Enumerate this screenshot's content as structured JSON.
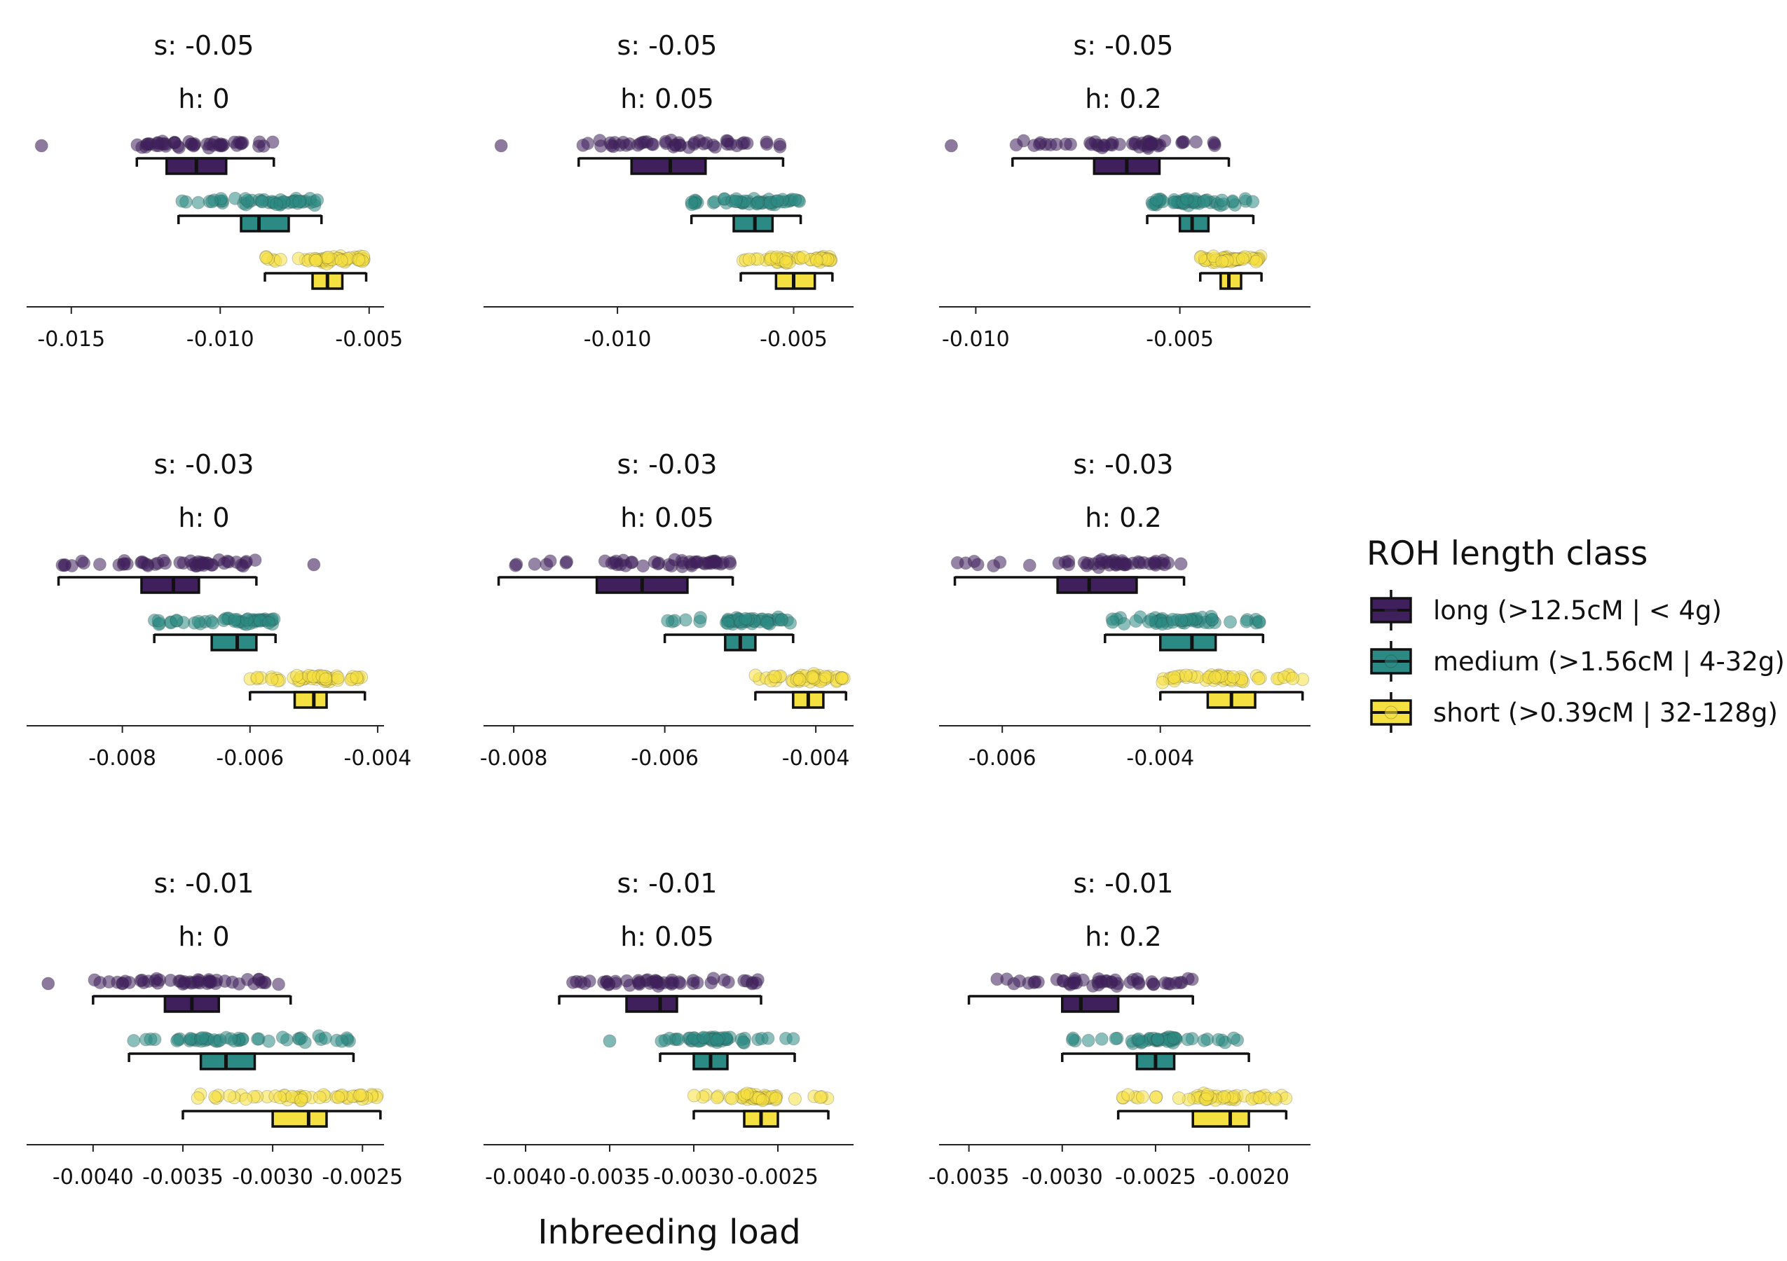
{
  "chart_data": {
    "type": "box",
    "xlabel": "Inbreeding load",
    "ylabel": "",
    "legend": {
      "title": "ROH length class",
      "position": "right",
      "entries": [
        {
          "label": "long (>12.5cM | < 4g)",
          "color": "#3f1f5c"
        },
        {
          "label": "medium (>1.56cM | 4-32g)",
          "color": "#2b8a83"
        },
        {
          "label": "short (>0.39cM | 32-128g)",
          "color": "#f5e042"
        }
      ]
    },
    "panels": [
      {
        "s": "s: -0.05",
        "h": "h: 0",
        "xlim": [
          -0.0165,
          -0.0045
        ],
        "ticks": [
          {
            "v": -0.015,
            "label": "-0.015"
          },
          {
            "v": -0.01,
            "label": "-0.010"
          },
          {
            "v": -0.005,
            "label": "-0.005"
          }
        ],
        "boxes": [
          {
            "class": "long",
            "min": -0.0128,
            "q1": -0.0118,
            "median": -0.0108,
            "q3": -0.0098,
            "max": -0.0082,
            "outliers": [
              -0.016
            ]
          },
          {
            "class": "medium",
            "min": -0.0114,
            "q1": -0.0093,
            "median": -0.0087,
            "q3": -0.0077,
            "max": -0.0066,
            "outliers": []
          },
          {
            "class": "short",
            "min": -0.0085,
            "q1": -0.0069,
            "median": -0.0064,
            "q3": -0.0059,
            "max": -0.0051,
            "outliers": []
          }
        ]
      },
      {
        "s": "s: -0.05",
        "h": "h: 0.05",
        "xlim": [
          -0.0138,
          -0.0033
        ],
        "ticks": [
          {
            "v": -0.01,
            "label": "-0.010"
          },
          {
            "v": -0.005,
            "label": "-0.005"
          }
        ],
        "boxes": [
          {
            "class": "long",
            "min": -0.0111,
            "q1": -0.0096,
            "median": -0.0085,
            "q3": -0.0075,
            "max": -0.0053,
            "outliers": [
              -0.0133
            ]
          },
          {
            "class": "medium",
            "min": -0.0079,
            "q1": -0.0067,
            "median": -0.0061,
            "q3": -0.0056,
            "max": -0.0048,
            "outliers": []
          },
          {
            "class": "short",
            "min": -0.0065,
            "q1": -0.0055,
            "median": -0.005,
            "q3": -0.0044,
            "max": -0.0039,
            "outliers": []
          }
        ]
      },
      {
        "s": "s: -0.05",
        "h": "h: 0.2",
        "xlim": [
          -0.0109,
          -0.0018
        ],
        "ticks": [
          {
            "v": -0.01,
            "label": "-0.010"
          },
          {
            "v": -0.005,
            "label": "-0.005"
          }
        ],
        "boxes": [
          {
            "class": "long",
            "min": -0.0091,
            "q1": -0.0071,
            "median": -0.0063,
            "q3": -0.0055,
            "max": -0.0038,
            "outliers": [
              -0.0106
            ]
          },
          {
            "class": "medium",
            "min": -0.0058,
            "q1": -0.005,
            "median": -0.0047,
            "q3": -0.0043,
            "max": -0.0032,
            "outliers": []
          },
          {
            "class": "short",
            "min": -0.0045,
            "q1": -0.004,
            "median": -0.0038,
            "q3": -0.0035,
            "max": -0.003,
            "outliers": []
          }
        ]
      },
      {
        "s": "s: -0.03",
        "h": "h: 0",
        "xlim": [
          -0.0095,
          -0.0039
        ],
        "ticks": [
          {
            "v": -0.008,
            "label": "-0.008"
          },
          {
            "v": -0.006,
            "label": "-0.006"
          },
          {
            "v": -0.004,
            "label": "-0.004"
          }
        ],
        "boxes": [
          {
            "class": "long",
            "min": -0.009,
            "q1": -0.0077,
            "median": -0.0072,
            "q3": -0.0068,
            "max": -0.0059,
            "outliers": [
              -0.005
            ]
          },
          {
            "class": "medium",
            "min": -0.0075,
            "q1": -0.0066,
            "median": -0.0062,
            "q3": -0.0059,
            "max": -0.0056,
            "outliers": []
          },
          {
            "class": "short",
            "min": -0.006,
            "q1": -0.0053,
            "median": -0.005,
            "q3": -0.0048,
            "max": -0.0042,
            "outliers": []
          }
        ]
      },
      {
        "s": "s: -0.03",
        "h": "h: 0.05",
        "xlim": [
          -0.0084,
          -0.0035
        ],
        "ticks": [
          {
            "v": -0.008,
            "label": "-0.008"
          },
          {
            "v": -0.006,
            "label": "-0.006"
          },
          {
            "v": -0.004,
            "label": "-0.004"
          }
        ],
        "boxes": [
          {
            "class": "long",
            "min": -0.0082,
            "q1": -0.0069,
            "median": -0.0063,
            "q3": -0.0057,
            "max": -0.0051,
            "outliers": []
          },
          {
            "class": "medium",
            "min": -0.006,
            "q1": -0.0052,
            "median": -0.005,
            "q3": -0.0048,
            "max": -0.0043,
            "outliers": []
          },
          {
            "class": "short",
            "min": -0.0048,
            "q1": -0.0043,
            "median": -0.0041,
            "q3": -0.0039,
            "max": -0.0036,
            "outliers": []
          }
        ]
      },
      {
        "s": "s: -0.03",
        "h": "h: 0.2",
        "xlim": [
          -0.0068,
          -0.0021
        ],
        "ticks": [
          {
            "v": -0.006,
            "label": "-0.006"
          },
          {
            "v": -0.004,
            "label": "-0.004"
          }
        ],
        "boxes": [
          {
            "class": "long",
            "min": -0.0066,
            "q1": -0.0053,
            "median": -0.0049,
            "q3": -0.0043,
            "max": -0.0037,
            "outliers": []
          },
          {
            "class": "medium",
            "min": -0.0047,
            "q1": -0.004,
            "median": -0.0036,
            "q3": -0.0033,
            "max": -0.0027,
            "outliers": [
              -0.0046
            ]
          },
          {
            "class": "short",
            "min": -0.004,
            "q1": -0.0034,
            "median": -0.0031,
            "q3": -0.0028,
            "max": -0.0022,
            "outliers": []
          }
        ]
      },
      {
        "s": "s: -0.01",
        "h": "h: 0",
        "xlim": [
          -0.00437,
          -0.00238
        ],
        "ticks": [
          {
            "v": -0.004,
            "label": "-0.0040"
          },
          {
            "v": -0.0035,
            "label": "-0.0035"
          },
          {
            "v": -0.003,
            "label": "-0.0030"
          },
          {
            "v": -0.0025,
            "label": "-0.0025"
          }
        ],
        "boxes": [
          {
            "class": "long",
            "min": -0.004,
            "q1": -0.0036,
            "median": -0.00345,
            "q3": -0.0033,
            "max": -0.0029,
            "outliers": [
              -0.00425
            ]
          },
          {
            "class": "medium",
            "min": -0.0038,
            "q1": -0.0034,
            "median": -0.00326,
            "q3": -0.0031,
            "max": -0.00255,
            "outliers": []
          },
          {
            "class": "short",
            "min": -0.0035,
            "q1": -0.003,
            "median": -0.0028,
            "q3": -0.0027,
            "max": -0.0024,
            "outliers": []
          }
        ]
      },
      {
        "s": "s: -0.01",
        "h": "h: 0.05",
        "xlim": [
          -0.00425,
          -0.00205
        ],
        "ticks": [
          {
            "v": -0.004,
            "label": "-0.0040"
          },
          {
            "v": -0.0035,
            "label": "-0.0035"
          },
          {
            "v": -0.003,
            "label": "-0.0030"
          },
          {
            "v": -0.0025,
            "label": "-0.0025"
          }
        ],
        "boxes": [
          {
            "class": "long",
            "min": -0.0038,
            "q1": -0.0034,
            "median": -0.0032,
            "q3": -0.0031,
            "max": -0.0026,
            "outliers": []
          },
          {
            "class": "medium",
            "min": -0.0032,
            "q1": -0.003,
            "median": -0.0029,
            "q3": -0.0028,
            "max": -0.0024,
            "outliers": [
              -0.0035
            ]
          },
          {
            "class": "short",
            "min": -0.003,
            "q1": -0.0027,
            "median": -0.0026,
            "q3": -0.0025,
            "max": -0.0022,
            "outliers": []
          }
        ]
      },
      {
        "s": "s: -0.01",
        "h": "h: 0.2",
        "xlim": [
          -0.00366,
          -0.00167
        ],
        "ticks": [
          {
            "v": -0.0035,
            "label": "-0.0035"
          },
          {
            "v": -0.003,
            "label": "-0.0030"
          },
          {
            "v": -0.0025,
            "label": "-0.0025"
          },
          {
            "v": -0.002,
            "label": "-0.0020"
          }
        ],
        "boxes": [
          {
            "class": "long",
            "min": -0.0035,
            "q1": -0.003,
            "median": -0.0029,
            "q3": -0.0027,
            "max": -0.0023,
            "outliers": []
          },
          {
            "class": "medium",
            "min": -0.003,
            "q1": -0.0026,
            "median": -0.0025,
            "q3": -0.0024,
            "max": -0.002,
            "outliers": []
          },
          {
            "class": "short",
            "min": -0.0027,
            "q1": -0.0023,
            "median": -0.0021,
            "q3": -0.002,
            "max": -0.0018,
            "outliers": []
          }
        ]
      }
    ]
  }
}
